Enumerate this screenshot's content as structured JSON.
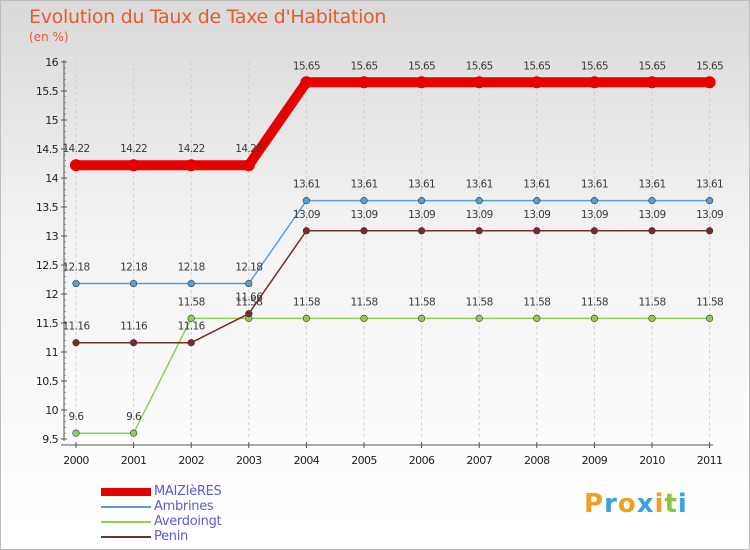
{
  "chart_data": {
    "type": "line",
    "title": "Evolution du Taux de Taxe d'Habitation",
    "unit_label": "(en %)",
    "xlabel": "",
    "ylabel": "",
    "ylim": [
      9.5,
      16
    ],
    "y_ticks": [
      "9.5",
      "10",
      "10.5",
      "11",
      "11.5",
      "12",
      "12.5",
      "13",
      "13.5",
      "14",
      "14.5",
      "15",
      "15.5",
      "16"
    ],
    "y_tick_values": [
      9.5,
      10,
      10.5,
      11,
      11.5,
      12,
      12.5,
      13,
      13.5,
      14,
      14.5,
      15,
      15.5,
      16
    ],
    "categories": [
      "2000",
      "2001",
      "2002",
      "2003",
      "2004",
      "2005",
      "2006",
      "2007",
      "2008",
      "2009",
      "2010",
      "2011"
    ],
    "legend_position": "bottom-left",
    "series": [
      {
        "name": "MAIZIèRES",
        "color": "#e60000",
        "values": [
          14.22,
          14.22,
          14.22,
          14.22,
          15.65,
          15.65,
          15.65,
          15.65,
          15.65,
          15.65,
          15.65,
          15.65
        ],
        "labels": [
          "14.22",
          "14.22",
          "14.22",
          "14.22",
          "15.65",
          "15.65",
          "15.65",
          "15.65",
          "15.65",
          "15.65",
          "15.65",
          "15.65"
        ]
      },
      {
        "name": "Ambrines",
        "color": "#5a9ed6",
        "values": [
          12.18,
          12.18,
          12.18,
          12.18,
          13.61,
          13.61,
          13.61,
          13.61,
          13.61,
          13.61,
          13.61,
          13.61
        ],
        "labels": [
          "12.18",
          "12.18",
          "12.18",
          "12.18",
          "13.61",
          "13.61",
          "13.61",
          "13.61",
          "13.61",
          "13.61",
          "13.61",
          "13.61"
        ]
      },
      {
        "name": "Averdoingt",
        "color": "#8fd050",
        "values": [
          9.6,
          9.6,
          11.58,
          11.58,
          11.58,
          11.58,
          11.58,
          11.58,
          11.58,
          11.58,
          11.58,
          11.58
        ],
        "labels": [
          "9.6",
          "9.6",
          "11.58",
          "11.58",
          "11.58",
          "11.58",
          "11.58",
          "11.58",
          "11.58",
          "11.58",
          "11.58",
          "11.58"
        ]
      },
      {
        "name": "Penin",
        "color": "#7a2a2a",
        "values": [
          11.16,
          11.16,
          11.16,
          11.66,
          13.09,
          13.09,
          13.09,
          13.09,
          13.09,
          13.09,
          13.09,
          13.09
        ],
        "labels": [
          "11.16",
          "11.16",
          "11.16",
          "11.66",
          "13.09",
          "13.09",
          "13.09",
          "13.09",
          "13.09",
          "13.09",
          "13.09",
          "13.09"
        ]
      }
    ]
  },
  "logo": {
    "letters": [
      "P",
      "r",
      "o",
      "x",
      "i",
      "t",
      "i"
    ],
    "colors": [
      "#f0a020",
      "#3aa0e0",
      "#f0a020",
      "#3aa0e0",
      "#f0a020",
      "#8cc63f",
      "#3aa0e0"
    ]
  }
}
